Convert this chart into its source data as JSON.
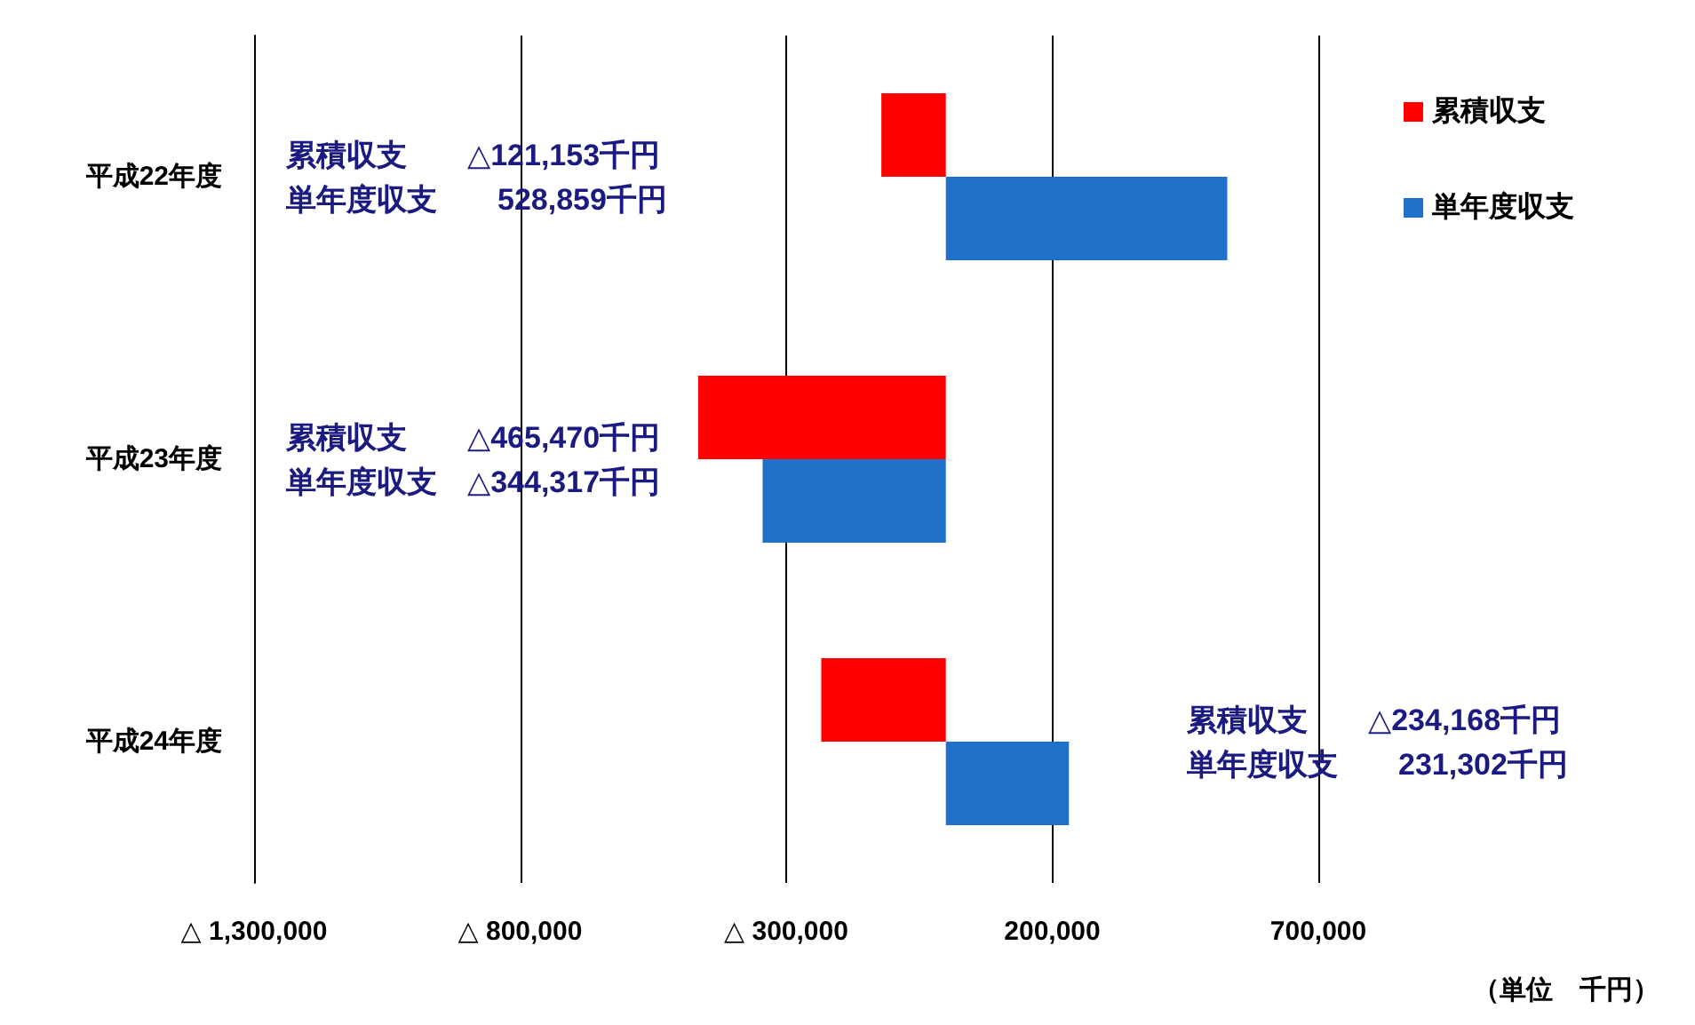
{
  "chart_data": {
    "type": "bar",
    "orientation": "horizontal",
    "categories": [
      "平成22年度",
      "平成23年度",
      "平成24年度"
    ],
    "series": [
      {
        "name": "累積収支",
        "color": "#ff0000",
        "values": [
          -121153,
          -465470,
          -234168
        ]
      },
      {
        "name": "単年度収支",
        "color": "#1e70c8",
        "values": [
          528859,
          -344317,
          231302
        ]
      }
    ],
    "xlim": [
      -1300000,
      700000
    ],
    "xticks": [
      {
        "value": -1300000,
        "label": "△ 1,300,000"
      },
      {
        "value": -800000,
        "label": "△ 800,000"
      },
      {
        "value": -300000,
        "label": "△ 300,000"
      },
      {
        "value": 200000,
        "label": "200,000"
      },
      {
        "value": 700000,
        "label": "700,000"
      }
    ],
    "grid": "x",
    "legend": "top right",
    "annotations": [
      "累積収支　　△121,153千円",
      "単年度収支　　528,859千円",
      "累積収支　　△465,470千円",
      "単年度収支　△344,317千円",
      "累積収支　　△234,168千円",
      "単年度収支　　231,302千円",
      "（単位　千円）"
    ]
  }
}
